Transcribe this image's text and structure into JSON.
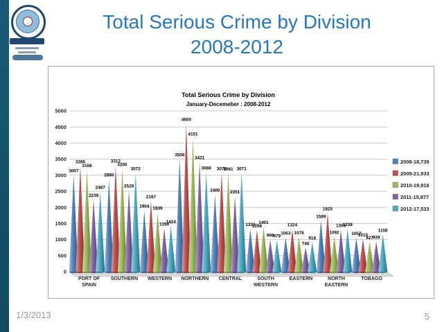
{
  "slide": {
    "title_line1": "Total Serious Crime by Division",
    "title_line2": "2008-2012",
    "footer_date": "1/3/2013",
    "slide_number": "5",
    "accent_color": "#1a5a74",
    "title_color": "#2777be"
  },
  "chart_data": {
    "type": "bar",
    "bar_shape": "cone-3d",
    "title": "Total Serious Crime by Division",
    "subtitle": "January-Decemeber : 2008-2012",
    "categories": [
      "PORT OF SPAIN",
      "SOUTHERN",
      "WESTERN",
      "NORTHERN",
      "CENTRAL",
      "SOUTH WESTERN",
      "EASTERN",
      "NORTH EASTERN",
      "TOBAGO"
    ],
    "series": [
      {
        "name": "2008-18,739",
        "color": "#4f81bd",
        "values": [
          3007,
          2880,
          1904,
          3506,
          2400,
          1333,
          1063,
          1589,
          1057
        ]
      },
      {
        "name": "2009-21,933",
        "color": "#c0504d",
        "values": [
          3286,
          3312,
          2197,
          4600,
          3076,
          1298,
          1324,
          1825,
          1015
        ]
      },
      {
        "name": "2010-19,918",
        "color": "#9bbb59",
        "values": [
          3168,
          3200,
          1839,
          4151,
          3061,
          1401,
          1079,
          1092,
          927
        ]
      },
      {
        "name": "2011-15,877",
        "color": "#8064a2",
        "values": [
          2239,
          2528,
          1350,
          3421,
          2351,
          998,
          746,
          1305,
          939
        ]
      },
      {
        "name": "2012-17,533",
        "color": "#4bacc6",
        "values": [
          2487,
          3072,
          1424,
          3088,
          3071,
          979,
          918,
          1338,
          1156
        ]
      }
    ],
    "ylim": [
      0,
      5000
    ],
    "ytick_step": 500,
    "grid": true,
    "legend_position": "right",
    "data_labels": true
  }
}
